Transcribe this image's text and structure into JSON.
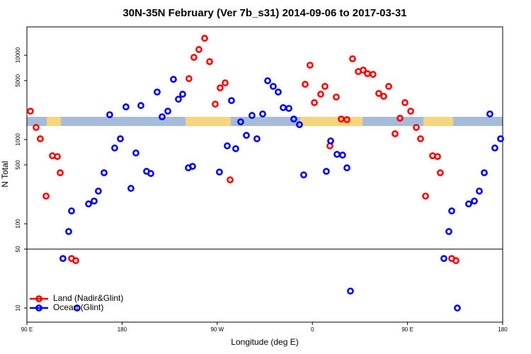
{
  "chart_data": {
    "type": "scatter",
    "title": "30N-35N February (Ver 7b_s31)   2014-09-06 to 2017-03-31",
    "x_label": "Longitude (deg E)",
    "y_label": "N Total",
    "xlim": [
      90,
      540
    ],
    "xticks": [
      {
        "value": 90,
        "label": "90 E"
      },
      {
        "value": 180,
        "label": "180"
      },
      {
        "value": 270,
        "label": "90 W"
      },
      {
        "value": 360,
        "label": "0"
      },
      {
        "value": 450,
        "label": "90 E"
      },
      {
        "value": 540,
        "label": "180"
      }
    ],
    "ylim": [
      6.8,
      21700
    ],
    "ylog": true,
    "yticks": [
      10,
      50,
      100,
      500,
      1000,
      5000,
      10000
    ],
    "hline": 50,
    "legend": "bottom-left",
    "series": [
      {
        "name": "Land (Nadir&Glint)",
        "color": "#ff0000",
        "x": [
          93.3,
          98.7,
          102.7,
          108.1,
          114.1,
          118.8,
          121.5,
          132.2,
          136.2,
          243.3,
          248.0,
          252.7,
          258.1,
          262.8,
          268.1,
          272.8,
          277.5,
          282.2,
          353.2,
          357.8,
          361.9,
          367.9,
          371.9,
          376.6,
          382.6,
          387.3,
          392.7,
          398.0,
          403.4,
          408.1,
          412.1,
          417.4,
          422.8,
          427.5,
          432.2,
          438.2,
          442.9,
          447.6,
          453.0,
          458.3,
          462.3,
          467.0,
          473.7,
          478.4,
          481.0,
          491.8,
          495.8
        ],
        "values": [
          2170,
          1390,
          1020,
          213,
          641,
          628,
          403,
          38.7,
          36.5,
          5280,
          9440,
          11700,
          15900,
          8400,
          2630,
          4100,
          4700,
          332,
          4520,
          7620,
          2740,
          3450,
          4270,
          840,
          3190,
          1750,
          1720,
          9080,
          6410,
          6670,
          6050,
          5930,
          3520,
          3260,
          4270,
          1170,
          1790,
          2740,
          2170,
          1390,
          1020,
          213,
          641,
          628,
          403,
          38.7,
          36.5
        ]
      },
      {
        "name": "Ocean (Glint)",
        "color": "#0000ee",
        "x": [
          124.1,
          129.5,
          132.2,
          137.5,
          148.3,
          153.6,
          157.6,
          163.0,
          168.3,
          173.0,
          178.4,
          183.7,
          188.4,
          193.1,
          197.8,
          203.2,
          207.2,
          213.2,
          217.9,
          223.3,
          228.6,
          233.3,
          237.3,
          242.7,
          246.7,
          272.1,
          279.5,
          283.5,
          287.5,
          292.2,
          297.6,
          302.9,
          307.6,
          313.0,
          317.7,
          323.0,
          327.7,
          332.4,
          337.8,
          342.4,
          347.8,
          351.8,
          373.2,
          377.3,
          383.3,
          388.6,
          392.7,
          396.0,
          484.4,
          489.1,
          491.8,
          497.1,
          507.8,
          513.2,
          517.9,
          522.6,
          527.9,
          532.6,
          538.0
        ],
        "values": [
          38.7,
          80.9,
          142,
          10,
          172,
          186,
          244,
          403,
          1970,
          793,
          1020,
          2440,
          263,
          692,
          2530,
          419,
          395,
          3660,
          1860,
          2170,
          5180,
          3010,
          3450,
          461,
          480,
          411,
          840,
          2900,
          778,
          1620,
          1120,
          1930,
          1020,
          2010,
          4980,
          4270,
          3660,
          2390,
          2340,
          1750,
          1500,
          380,
          419,
          962,
          667,
          653,
          461,
          15.9,
          38.7,
          80.9,
          142,
          10,
          172,
          186,
          244,
          403,
          2010,
          793,
          1020
        ]
      }
    ]
  }
}
